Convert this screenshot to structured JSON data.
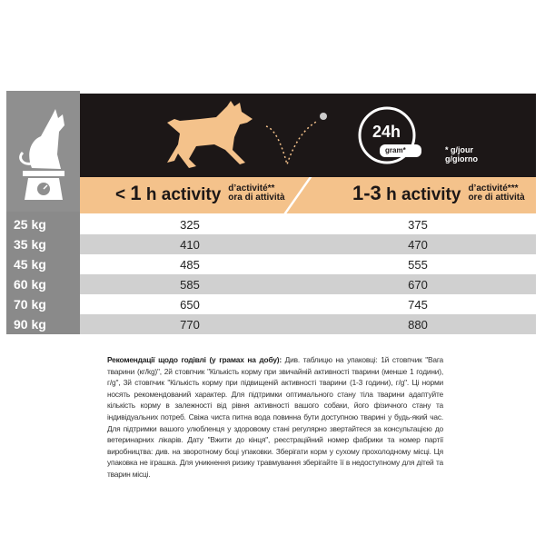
{
  "header": {
    "clock_label": "24h",
    "bowl_label": "gram*",
    "unit_note_fr": "* g/jour",
    "unit_note_it": "g/giorno"
  },
  "columns": [
    {
      "main_prefix": "< ",
      "main_num": "1",
      "main_suffix": " h activity",
      "fr": "d’activité**",
      "it": "ora di attività"
    },
    {
      "main_prefix": "",
      "main_num": "1-3",
      "main_suffix": " h activity",
      "fr": "d’activité***",
      "it": "ore di attività"
    }
  ],
  "rows": [
    {
      "weight": "25 kg",
      "low": "325",
      "high": "375"
    },
    {
      "weight": "35 kg",
      "low": "410",
      "high": "470"
    },
    {
      "weight": "45 kg",
      "low": "485",
      "high": "555"
    },
    {
      "weight": "60 kg",
      "low": "585",
      "high": "670"
    },
    {
      "weight": "70 kg",
      "low": "650",
      "high": "745"
    },
    {
      "weight": "90 kg",
      "low": "770",
      "high": "880"
    }
  ],
  "colors": {
    "band": "#f4c28b",
    "header": "#1c1717",
    "side": "#8a8a8a",
    "alt_row": "#d0d0d0"
  },
  "note": {
    "title": "Рекомендації щодо годівлі (у грамах на добу):",
    "body": " Див. таблицю на упаковці: 1й стовпчик \"Вага тварини (кг/kg)\", 2й стовпчик \"Кількість корму при звичайній активності тварини (менше 1 години), г/g\", 3й стовпчик \"Кількість корму при підвищеній активності тварини (1-3 години), г/g\". Ці норми носять рекомендований характер. Для підтримки оптимального стану тіла тварини адаптуйте кількість корму в залежності від рівня активності вашого собаки, його фізичного стану та індивідуальних потреб. Свіжа чиста питна вода повинна бути доступною тварині у будь-який час. Для підтримки вашого улюбленця у здоровому стані регулярно звертайтеся за консультацією до ветеринарних лікарів. Дату \"Вжити до кінця\", реєстраційний номер фабрики та номер партії виробництва: див. на зворотному боці упаковки. Зберігати корм у сухому прохолодному місці. Ця упаковка не іграшка. Для уникнення ризику травмування зберігайте її в недоступному для дітей та тварин місці."
  }
}
